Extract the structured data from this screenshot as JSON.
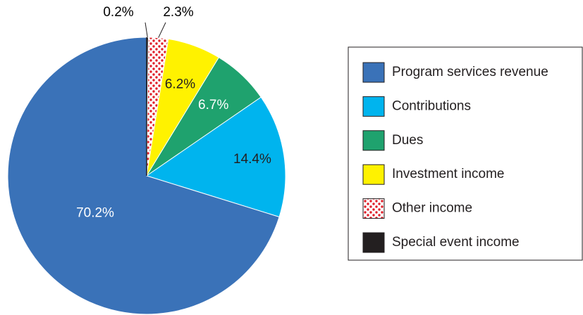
{
  "chart_data": {
    "type": "pie",
    "categories": [
      "Program services revenue",
      "Contributions",
      "Dues",
      "Investment income",
      "Other income",
      "Special event income"
    ],
    "values": [
      70.2,
      14.4,
      6.7,
      6.2,
      2.3,
      0.2
    ],
    "value_labels": [
      "70.2%",
      "14.4%",
      "6.7%",
      "6.2%",
      "2.3%",
      "0.2%"
    ],
    "colors": [
      "#3a72b8",
      "#00b4ee",
      "#1fa26e",
      "#fff200",
      "pattern-dots",
      "#231f20"
    ],
    "legend": "right"
  }
}
